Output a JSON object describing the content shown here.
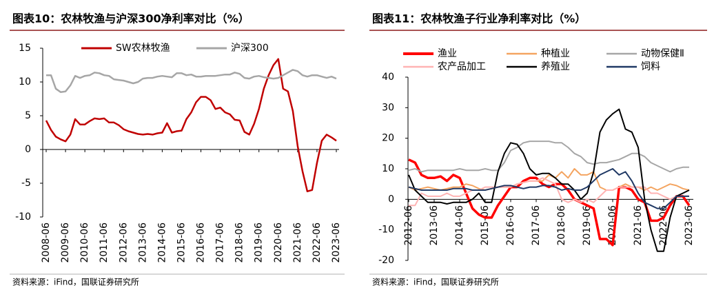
{
  "chart_data": [
    {
      "type": "line",
      "title": "图表10：农林牧渔与沪深300净利率对比（%）",
      "source": "资料来源：iFind，国联证券研究所",
      "categories": [
        "2008-06",
        null,
        null,
        null,
        "2009-06",
        null,
        null,
        null,
        "2010-06",
        null,
        null,
        null,
        "2011-06",
        null,
        null,
        null,
        "2012-06",
        null,
        null,
        null,
        "2013-06",
        null,
        null,
        null,
        "2014-06",
        null,
        null,
        null,
        "2015-06",
        null,
        null,
        null,
        "2016-06",
        null,
        null,
        null,
        "2017-06",
        null,
        null,
        null,
        "2018-06",
        null,
        null,
        null,
        "2019-06",
        null,
        null,
        null,
        "2020-06",
        null,
        null,
        null,
        "2021-06",
        null,
        null,
        null,
        "2022-06",
        null,
        null,
        null,
        "2023-06"
      ],
      "series": [
        {
          "name": "SW农林牧渔",
          "color": "#c00000",
          "values": [
            4.3,
            2.9,
            1.9,
            1.5,
            1.2,
            2.2,
            4.5,
            3.7,
            3.7,
            4.2,
            4.6,
            4.5,
            4.6,
            4.0,
            4.0,
            3.6,
            3.0,
            2.7,
            2.5,
            2.3,
            2.2,
            2.3,
            2.2,
            2.4,
            2.5,
            3.9,
            2.5,
            2.7,
            2.8,
            4.5,
            5.5,
            7.0,
            7.8,
            7.8,
            7.3,
            6.0,
            6.2,
            5.5,
            5.2,
            4.4,
            4.3,
            2.6,
            2.2,
            3.8,
            6.0,
            9.0,
            11.0,
            12.5,
            13.4,
            9.0,
            8.6,
            5.7,
            0.5,
            -3.2,
            -6.2,
            -6.0,
            -2.0,
            1.3,
            2.2,
            1.8,
            1.3
          ]
        },
        {
          "name": "沪深300",
          "color": "#a6a6a6",
          "values": [
            11.0,
            11.0,
            9.0,
            8.5,
            8.6,
            9.5,
            10.9,
            10.6,
            10.9,
            11.0,
            11.4,
            11.3,
            11.0,
            10.9,
            10.4,
            10.3,
            10.2,
            10.0,
            9.8,
            10.0,
            10.5,
            10.6,
            10.6,
            10.8,
            10.9,
            10.8,
            10.7,
            11.3,
            11.3,
            11.0,
            11.1,
            10.8,
            10.8,
            10.9,
            10.9,
            10.9,
            11.0,
            11.1,
            11.1,
            11.4,
            11.2,
            10.6,
            10.5,
            10.8,
            10.9,
            10.7,
            10.6,
            10.5,
            10.6,
            11.0,
            11.4,
            11.8,
            11.6,
            11.0,
            10.8,
            11.0,
            11.0,
            10.8,
            10.6,
            10.8,
            10.5
          ]
        }
      ],
      "ylim": [
        -10,
        15
      ],
      "yticks": [
        -10,
        -5,
        0,
        5,
        10,
        15
      ],
      "grid": false,
      "legend": "top"
    },
    {
      "type": "line",
      "title": "图表11：农林牧渔子行业净利率对比（%）",
      "source": "资料来源：iFind，国联证券研究所",
      "categories": [
        "2012-06",
        null,
        null,
        null,
        "2013-06",
        null,
        null,
        null,
        "2014-06",
        null,
        null,
        null,
        "2015-06",
        null,
        null,
        null,
        "2016-06",
        null,
        null,
        null,
        "2017-06",
        null,
        null,
        null,
        "2018-06",
        null,
        null,
        null,
        "2019-06",
        null,
        null,
        null,
        "2020-06",
        null,
        null,
        null,
        "2021-06",
        null,
        null,
        null,
        "2022-06",
        null,
        null,
        null,
        "2023-06"
      ],
      "series": [
        {
          "name": "渔业",
          "color": "#ff0000",
          "values": [
            13,
            12,
            8,
            7,
            7,
            7.5,
            6,
            8,
            7,
            2,
            -3,
            -5,
            -6,
            -6,
            -2,
            1,
            4,
            4,
            6,
            7,
            7,
            5,
            4,
            5,
            5,
            3,
            0,
            -1,
            -2,
            -3,
            -13,
            -13,
            -15,
            4,
            4,
            3,
            0,
            -1,
            -7,
            -7,
            -6,
            -2,
            1,
            1,
            -2
          ]
        },
        {
          "name": "种植业",
          "color": "#f4a460",
          "values": [
            4,
            3,
            3.5,
            4,
            3.5,
            3,
            3.5,
            4,
            4,
            5,
            4.5,
            3.5,
            3,
            3.5,
            4,
            4,
            4,
            5,
            5.5,
            6,
            6,
            6,
            8,
            7,
            9,
            7,
            10,
            8,
            8,
            9,
            4,
            3,
            3,
            4,
            5,
            4,
            4,
            3,
            4,
            3,
            4,
            5,
            4.5,
            3.5,
            3
          ]
        },
        {
          "name": "动物保健Ⅱ",
          "color": "#a6a6a6",
          "values": [
            9.5,
            10,
            9,
            9.5,
            9.5,
            9.5,
            9.5,
            9.5,
            10,
            9.5,
            9.5,
            9.5,
            10,
            9.5,
            9.5,
            12,
            16,
            17,
            18.5,
            19,
            19,
            19,
            19,
            18.5,
            18.5,
            17,
            15,
            14,
            12,
            11.5,
            12,
            12,
            12.5,
            13,
            14,
            15,
            15,
            14,
            12,
            11,
            10,
            9,
            10,
            10.5,
            10.5
          ]
        },
        {
          "name": "农产品加工",
          "color": "#ffb3b3",
          "values": [
            -2,
            -2,
            2,
            1,
            1,
            1,
            2,
            1,
            1,
            2,
            3,
            3,
            4,
            4,
            4,
            4,
            4,
            5,
            5.5,
            6,
            6,
            7,
            6,
            5,
            0,
            -1,
            0,
            -1,
            0,
            -1,
            1,
            3,
            3,
            4,
            4,
            4,
            4,
            4,
            2,
            2,
            1,
            0,
            1,
            1,
            1
          ]
        },
        {
          "name": "养殖业",
          "color": "#000000",
          "values": [
            8,
            3,
            1,
            -1,
            -1,
            -1,
            -1.5,
            -1,
            -1,
            -1,
            0,
            2,
            -1,
            -1,
            9,
            15,
            18.5,
            18,
            15,
            10,
            8,
            8.5,
            8.5,
            7,
            5,
            5,
            3,
            0,
            2,
            9,
            22,
            26,
            28,
            29.5,
            23,
            22,
            17,
            0,
            -10,
            -17,
            -17,
            -6,
            1,
            2,
            3
          ]
        },
        {
          "name": "饲料",
          "color": "#1f3864",
          "values": [
            4,
            3.5,
            3,
            3,
            3,
            3,
            3,
            3.5,
            3.5,
            3.5,
            3,
            3,
            3,
            3.5,
            4,
            4.5,
            4.5,
            4,
            3.5,
            4,
            4,
            4.5,
            4.5,
            4,
            3,
            3.5,
            3,
            3,
            4,
            6,
            8,
            9,
            10,
            8,
            9,
            6,
            2,
            -1,
            -2,
            -3,
            -3,
            -1,
            1,
            1,
            1
          ]
        }
      ],
      "ylim": [
        -20,
        40
      ],
      "yticks": [
        -20,
        -10,
        0,
        10,
        20,
        30,
        40
      ],
      "grid": false,
      "legend": "top"
    }
  ]
}
